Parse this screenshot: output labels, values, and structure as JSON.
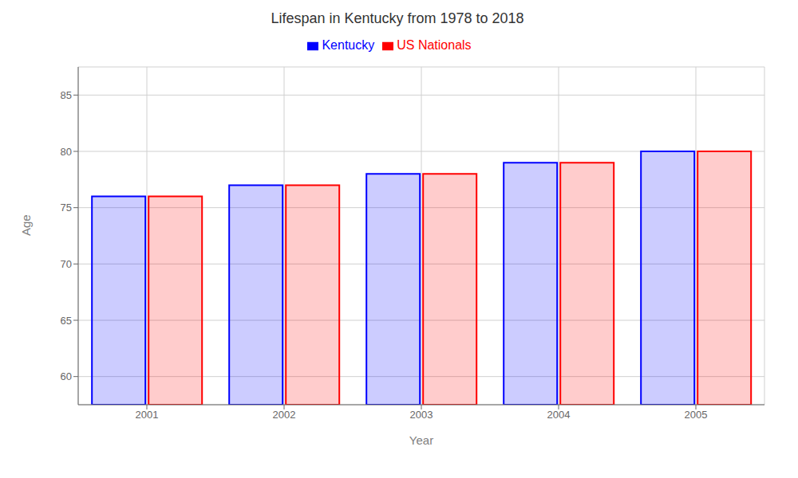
{
  "chart_data": {
    "type": "bar",
    "title": "Lifespan in Kentucky from 1978 to 2018",
    "x_label": "Year",
    "y_label": "Age",
    "categories": [
      "2001",
      "2002",
      "2003",
      "2004",
      "2005"
    ],
    "series": [
      {
        "name": "Kentucky",
        "color": "#0000ff",
        "values": [
          76,
          77,
          78,
          79,
          80
        ]
      },
      {
        "name": "US Nationals",
        "color": "#ff0000",
        "values": [
          76,
          77,
          78,
          79,
          80
        ]
      }
    ],
    "ylim": [
      57.5,
      87.5
    ],
    "yticks": [
      60,
      65,
      70,
      75,
      80,
      85
    ],
    "grid": true,
    "legend": "upper center"
  }
}
